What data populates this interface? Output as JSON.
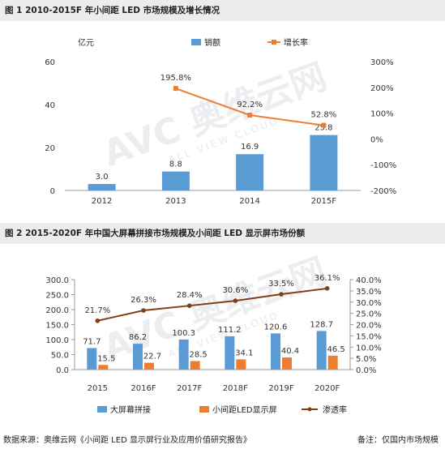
{
  "fig1": {
    "title": "图 1 2010-2015F 年小间距 LED 市场规模及增长情况"
  },
  "fig2": {
    "title": "图 2 2015-2020F 年中国大屏幕拼接市场规模及小间距 LED 显示屏市场份额"
  },
  "footer": {
    "source": "数据来源：奥维云网《小间距 LED 显示屏行业及应用价值研究报告》",
    "note": "备注：仅国内市场规模"
  },
  "colors": {
    "bar_blue": "#5b9bd5",
    "bar_orange": "#ed7d31",
    "line_orange": "#ed7d31",
    "line_brown": "#7f3f17"
  },
  "chart_data": [
    {
      "type": "bar",
      "unit_label": "亿元",
      "categories": [
        "2012",
        "2013",
        "2014",
        "2015F"
      ],
      "series": [
        {
          "name": "销额",
          "axis": "left",
          "values": [
            3.0,
            8.8,
            16.9,
            25.8
          ],
          "labels": [
            "3.0",
            "8.8",
            "16.9",
            "25.8"
          ]
        },
        {
          "name": "增长率",
          "type": "line",
          "axis": "right",
          "values": [
            null,
            195.8,
            92.2,
            52.8
          ],
          "labels": [
            "",
            "195.8%",
            "92.2%",
            "52.8%"
          ]
        }
      ],
      "ylim": [
        0,
        60
      ],
      "yticks": [
        "0",
        "20",
        "40",
        "60"
      ],
      "y2lim": [
        -200,
        300
      ],
      "y2ticks": [
        "-200%",
        "-100%",
        "0%",
        "100%",
        "200%",
        "300%"
      ],
      "legend": "top",
      "grid": false
    },
    {
      "type": "bar",
      "categories": [
        "2015",
        "2016F",
        "2017F",
        "2018F",
        "2019F",
        "2020F"
      ],
      "series": [
        {
          "name": "大屏幕拼接",
          "axis": "left",
          "values": [
            71.7,
            86.2,
            100.3,
            111.2,
            120.6,
            128.7
          ],
          "labels": [
            "71.7",
            "86.2",
            "100.3",
            "111.2",
            "120.6",
            "128.7"
          ]
        },
        {
          "name": "小间距LED显示屏",
          "axis": "left",
          "values": [
            15.5,
            22.7,
            28.5,
            34.1,
            40.4,
            46.5
          ],
          "labels": [
            "15.5",
            "22.7",
            "28.5",
            "34.1",
            "40.4",
            "46.5"
          ]
        },
        {
          "name": "渗透率",
          "type": "line",
          "axis": "right",
          "values": [
            21.7,
            26.3,
            28.4,
            30.6,
            33.5,
            36.1
          ],
          "labels": [
            "21.7%",
            "26.3%",
            "28.4%",
            "30.6%",
            "33.5%",
            "36.1%"
          ]
        }
      ],
      "ylim": [
        0,
        300
      ],
      "yticks": [
        "0.0",
        "50.0",
        "100.0",
        "150.0",
        "200.0",
        "250.0",
        "300.0"
      ],
      "y2lim": [
        0,
        40
      ],
      "y2ticks": [
        "0.0%",
        "5.0%",
        "10.0%",
        "15.0%",
        "20.0%",
        "25.0%",
        "30.0%",
        "35.0%",
        "40.0%"
      ],
      "legend": "bottom",
      "grid": false
    }
  ],
  "watermark": {
    "text": "AVC 奥维云网",
    "sub": "ALL VIEW CLOUD"
  }
}
